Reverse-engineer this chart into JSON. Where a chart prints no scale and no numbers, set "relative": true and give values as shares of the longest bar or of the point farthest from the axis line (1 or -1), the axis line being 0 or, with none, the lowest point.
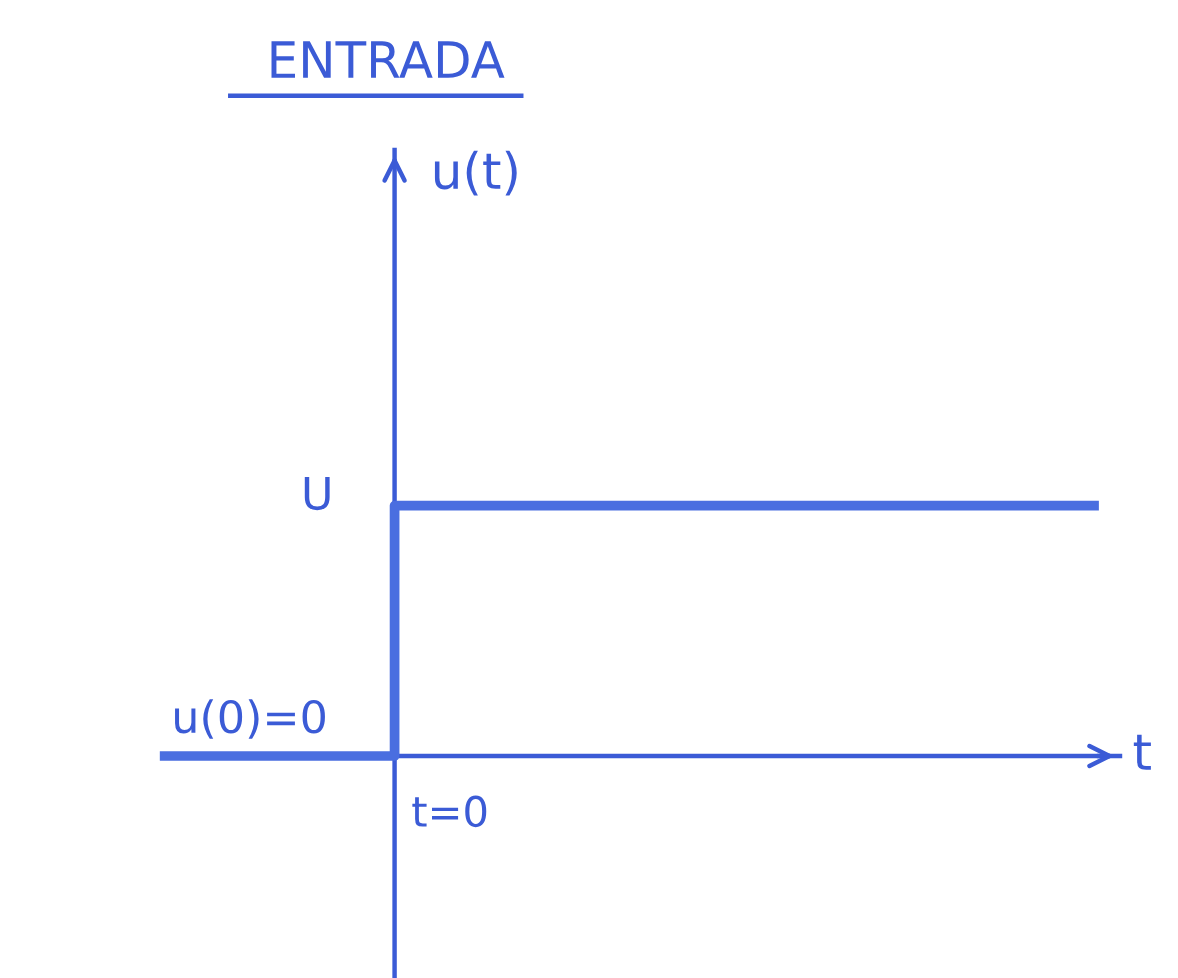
{
  "chart_data": {
    "type": "step",
    "title": "ENTRADA",
    "xlabel": "t",
    "categories": [
      null,
      null,
      null,
      null,
      null
    ],
    "values": [
      0,
      1,
      1,
      1,
      1
    ],
    "color": "#4a6ee0",
    "relative": true,
    "annotations": [
      "t=0",
      "U",
      "u(t)",
      {
        "text": "u(0)=0",
        "y": 0
      }
    ]
  }
}
